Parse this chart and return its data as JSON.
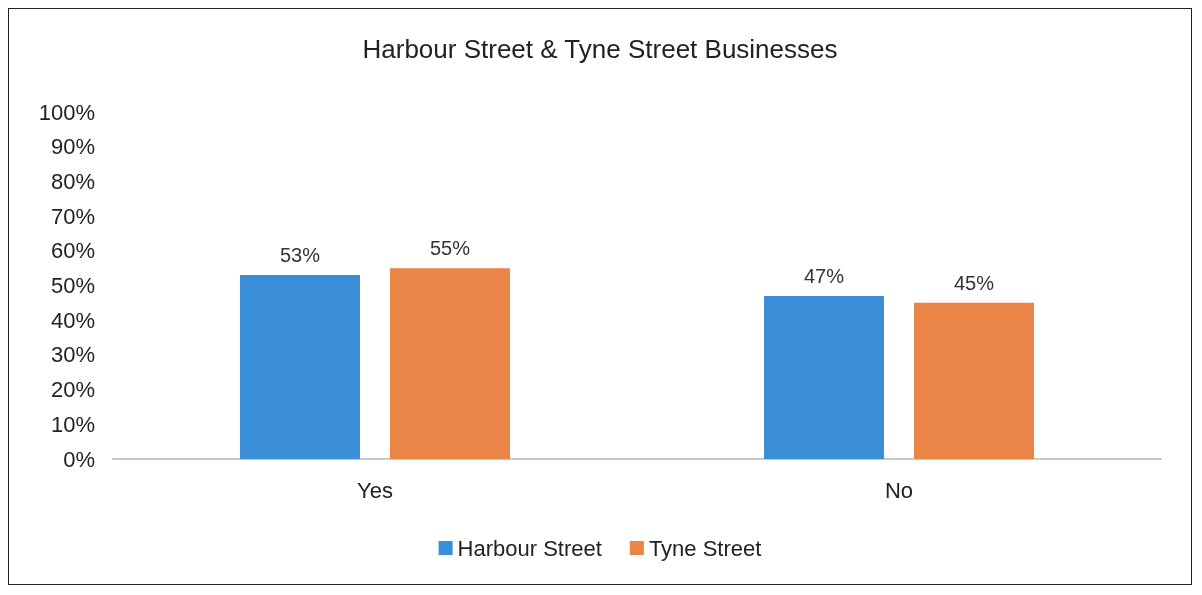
{
  "chart_data": {
    "type": "bar",
    "title": "Harbour Street & Tyne Street Businesses",
    "categories": [
      "Yes",
      "No"
    ],
    "series": [
      {
        "name": "Harbour Street",
        "color": "#3a8fd8",
        "values": [
          53,
          47
        ],
        "value_labels": [
          "53%",
          "47%"
        ]
      },
      {
        "name": "Tyne Street",
        "color": "#eb8547",
        "values": [
          55,
          45
        ],
        "value_labels": [
          "55%",
          "45%"
        ]
      }
    ],
    "ylim": [
      0,
      100
    ],
    "yticks": [
      {
        "value": 0,
        "label": "0%"
      },
      {
        "value": 10,
        "label": "10%"
      },
      {
        "value": 20,
        "label": "20%"
      },
      {
        "value": 30,
        "label": "30%"
      },
      {
        "value": 40,
        "label": "40%"
      },
      {
        "value": 50,
        "label": "50%"
      },
      {
        "value": 60,
        "label": "60%"
      },
      {
        "value": 70,
        "label": "70%"
      },
      {
        "value": 80,
        "label": "80%"
      },
      {
        "value": 90,
        "label": "90%"
      },
      {
        "value": 100,
        "label": "100%"
      }
    ],
    "grid": false,
    "legend": "bottom"
  }
}
